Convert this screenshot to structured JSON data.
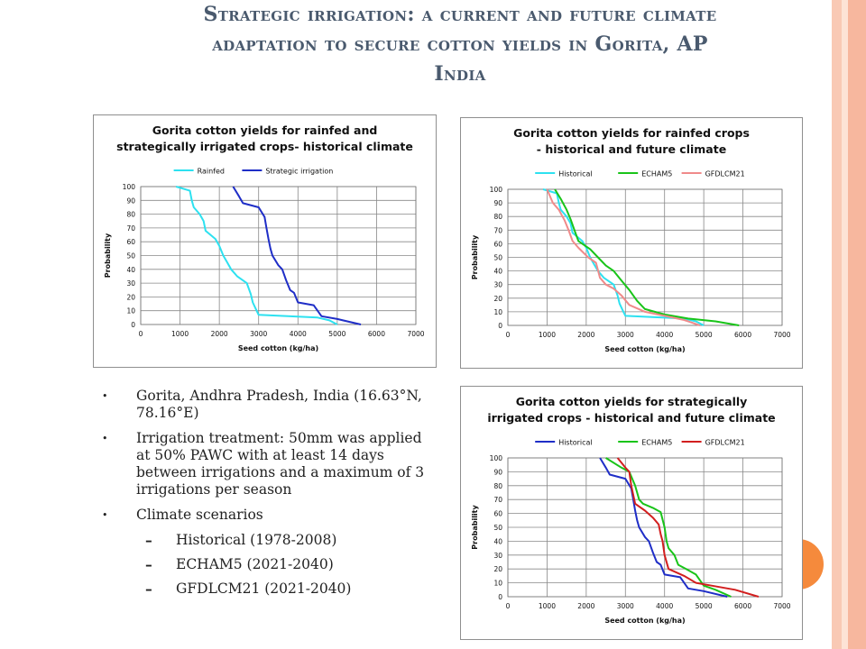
{
  "colors": {
    "accent_orange": "#f58a3c",
    "stripe_light": "#fde3d6",
    "stripe_mid": "#f9c9b4",
    "stripe_dark": "#f7b79e",
    "title_color": "#4a5a6e",
    "cyan": "#2de1f0",
    "navy": "#1f2ec7",
    "green": "#19c419",
    "pink": "#f08a8a",
    "red": "#d21f1f"
  },
  "slide": {
    "title_line1": "Strategic irrigation: a current and future climate",
    "title_line2": "adaptation to secure cotton yields in Gorita, AP",
    "title_line3": "India"
  },
  "bullets": [
    {
      "text": "Gorita, Andhra Pradesh, India (16.63°N, 78.16°E)"
    },
    {
      "text": "Irrigation treatment: 50mm was applied at 50% PAWC with at least 14 days between irrigations and a maximum of 3 irrigations per season"
    },
    {
      "text": "Climate scenarios"
    }
  ],
  "sub_bullets": [
    {
      "marker": "–",
      "text": "Historical (1978-2008)"
    },
    {
      "marker": "–",
      "text": "ECHAM5 (2021-2040)"
    },
    {
      "marker": "–",
      "text": "GFDLCM21 (2021-2040)"
    }
  ],
  "chart_data": [
    {
      "type": "line",
      "title_lines": [
        "Gorita cotton yields for rainfed and",
        "strategically irrigated crops- historical climate"
      ],
      "xlabel": "Seed cotton (kg/ha)",
      "ylabel": "Probability",
      "xlim": [
        0,
        7000
      ],
      "ylim": [
        0,
        100
      ],
      "xticks": [
        0,
        1000,
        2000,
        3000,
        4000,
        5000,
        6000,
        7000
      ],
      "yticks": [
        0,
        10,
        20,
        30,
        40,
        50,
        60,
        70,
        80,
        90,
        100
      ],
      "grid": true,
      "legend_position": "top",
      "series": [
        {
          "name": "Rainfed",
          "color": "#2de1f0",
          "x": [
            900,
            1250,
            1300,
            1350,
            1500,
            1600,
            1650,
            1900,
            2000,
            2100,
            2200,
            2300,
            2450,
            2700,
            2800,
            2850,
            2950,
            3000,
            4500,
            4800,
            5000
          ],
          "y": [
            100,
            97,
            90,
            85,
            80,
            75,
            68,
            62,
            57,
            50,
            45,
            40,
            35,
            30,
            22,
            16,
            10,
            7,
            5,
            3,
            0
          ]
        },
        {
          "name": "Strategic irrigation",
          "color": "#1f2ec7",
          "x": [
            2350,
            2500,
            2600,
            3000,
            3150,
            3200,
            3250,
            3300,
            3350,
            3500,
            3600,
            3700,
            3800,
            3900,
            4000,
            4400,
            4600,
            5000,
            5600
          ],
          "y": [
            100,
            93,
            88,
            85,
            78,
            70,
            62,
            55,
            50,
            43,
            40,
            32,
            25,
            23,
            16,
            14,
            6,
            4,
            0
          ]
        }
      ]
    },
    {
      "type": "line",
      "title_lines": [
        "Gorita cotton yields for rainfed crops",
        "- historical and future climate"
      ],
      "xlabel": "Seed cotton (kg/ha)",
      "ylabel": "Probability",
      "xlim": [
        0,
        7000
      ],
      "ylim": [
        0,
        100
      ],
      "xticks": [
        0,
        1000,
        2000,
        3000,
        4000,
        5000,
        6000,
        7000
      ],
      "yticks": [
        0,
        10,
        20,
        30,
        40,
        50,
        60,
        70,
        80,
        90,
        100
      ],
      "grid": true,
      "legend_position": "top",
      "series": [
        {
          "name": "Historical",
          "color": "#2de1f0",
          "x": [
            900,
            1250,
            1300,
            1350,
            1500,
            1600,
            1650,
            1900,
            2000,
            2100,
            2200,
            2300,
            2450,
            2700,
            2800,
            2850,
            2950,
            3000,
            4500,
            4800,
            5000
          ],
          "y": [
            100,
            97,
            90,
            85,
            80,
            75,
            68,
            62,
            57,
            50,
            45,
            40,
            35,
            30,
            22,
            16,
            10,
            7,
            5,
            3,
            0
          ]
        },
        {
          "name": "ECHAM5",
          "color": "#19c419",
          "x": [
            1200,
            1350,
            1500,
            1600,
            1700,
            1800,
            1900,
            2100,
            2300,
            2500,
            2700,
            2900,
            3100,
            3300,
            3500,
            4000,
            4600,
            5300,
            5900
          ],
          "y": [
            100,
            93,
            85,
            78,
            70,
            62,
            60,
            56,
            50,
            44,
            40,
            33,
            26,
            18,
            12,
            8,
            5,
            3,
            0
          ]
        },
        {
          "name": "GFDLCM21",
          "color": "#f08a8a",
          "x": [
            1000,
            1150,
            1300,
            1450,
            1550,
            1650,
            1800,
            2050,
            2250,
            2350,
            2500,
            2700,
            2900,
            3100,
            3500,
            4000,
            4500,
            4900
          ],
          "y": [
            100,
            90,
            85,
            77,
            70,
            62,
            57,
            50,
            46,
            35,
            30,
            27,
            22,
            15,
            10,
            7,
            4,
            0
          ]
        }
      ]
    },
    {
      "type": "line",
      "title_lines": [
        "Gorita cotton yields for strategically",
        "irrigated crops - historical and future climate"
      ],
      "xlabel": "Seed cotton (kg/ha)",
      "ylabel": "Probability",
      "xlim": [
        0,
        7000
      ],
      "ylim": [
        0,
        100
      ],
      "xticks": [
        0,
        1000,
        2000,
        3000,
        4000,
        5000,
        6000,
        7000
      ],
      "yticks": [
        0,
        10,
        20,
        30,
        40,
        50,
        60,
        70,
        80,
        90,
        100
      ],
      "grid": true,
      "legend_position": "top",
      "series": [
        {
          "name": "Historical",
          "color": "#1f2ec7",
          "x": [
            2350,
            2500,
            2600,
            3000,
            3150,
            3200,
            3250,
            3300,
            3350,
            3500,
            3600,
            3700,
            3800,
            3900,
            4000,
            4400,
            4600,
            5000,
            5600
          ],
          "y": [
            100,
            93,
            88,
            85,
            78,
            70,
            62,
            55,
            50,
            43,
            40,
            32,
            25,
            23,
            16,
            14,
            6,
            4,
            0
          ]
        },
        {
          "name": "ECHAM5",
          "color": "#19c419",
          "x": [
            2500,
            2900,
            3100,
            3250,
            3350,
            3450,
            3700,
            3900,
            4000,
            4050,
            4100,
            4250,
            4350,
            4550,
            4800,
            5000,
            5300,
            5700
          ],
          "y": [
            100,
            93,
            90,
            80,
            70,
            67,
            64,
            61,
            50,
            40,
            35,
            30,
            23,
            20,
            16,
            8,
            5,
            0
          ]
        },
        {
          "name": "GFDLCM21",
          "color": "#d21f1f",
          "x": [
            2800,
            3000,
            3100,
            3150,
            3250,
            3500,
            3700,
            3850,
            3900,
            3950,
            4000,
            4100,
            4500,
            4800,
            5200,
            5800,
            6400
          ],
          "y": [
            100,
            93,
            90,
            80,
            67,
            62,
            57,
            52,
            45,
            40,
            30,
            20,
            15,
            10,
            8,
            5,
            0
          ]
        }
      ]
    }
  ]
}
